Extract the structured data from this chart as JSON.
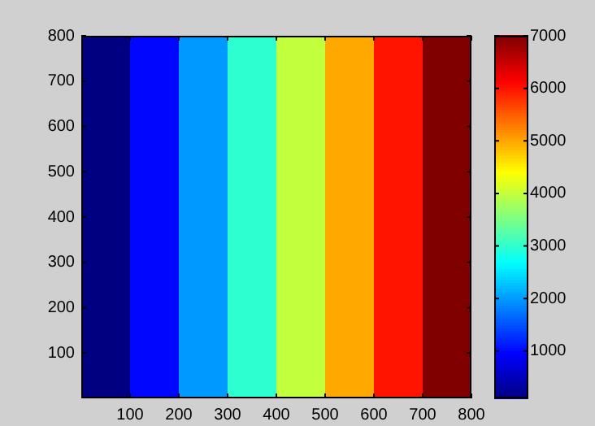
{
  "chart_data": {
    "type": "heatmap",
    "x": [
      50,
      150,
      250,
      350,
      450,
      550,
      650,
      750
    ],
    "cells": [
      [
        100,
        1000,
        2000,
        3000,
        4000,
        5000,
        6000,
        7000
      ]
    ],
    "xlim": [
      0,
      800
    ],
    "xticks": [
      100,
      200,
      300,
      400,
      500,
      600,
      700,
      800
    ],
    "ylim": [
      0,
      800
    ],
    "yticks": [
      100,
      200,
      300,
      400,
      500,
      600,
      700,
      800
    ],
    "clim": [
      100,
      7000
    ],
    "cticks": [
      1000,
      2000,
      3000,
      4000,
      5000,
      6000,
      7000
    ]
  }
}
